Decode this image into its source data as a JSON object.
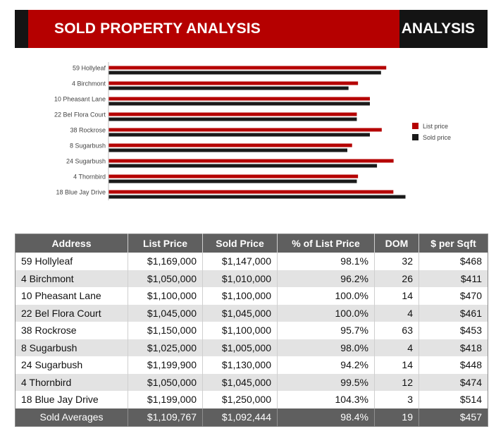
{
  "header": {
    "title": "SOLD PROPERTY ANALYSIS",
    "tag": "ANALYSIS"
  },
  "colors": {
    "list_price": "#b50000",
    "sold_price": "#1a1a1a"
  },
  "chart_data": {
    "type": "bar",
    "orientation": "horizontal",
    "categories": [
      "59 Hollyleaf",
      "4 Birchmont",
      "10 Pheasant Lane",
      "22 Bel Flora Court",
      "38 Rockrose",
      "8 Sugarbush",
      "24 Sugarbush",
      "4 Thornbird",
      "18 Blue Jay Drive"
    ],
    "series": [
      {
        "name": "List price",
        "values": [
          1169000,
          1050000,
          1100000,
          1045000,
          1150000,
          1025000,
          1199900,
          1050000,
          1199000
        ]
      },
      {
        "name": "Sold price",
        "values": [
          1147000,
          1010000,
          1100000,
          1045000,
          1100000,
          1005000,
          1130000,
          1045000,
          1250000
        ]
      }
    ],
    "title": "",
    "xlabel": "",
    "ylabel": "",
    "xlim": [
      0,
      1250000
    ],
    "grid": false,
    "axis_labels_visible": false,
    "legend_position": "right"
  },
  "table": {
    "headers": [
      "Address",
      "List Price",
      "Sold Price",
      "% of List Price",
      "DOM",
      "$ per Sqft"
    ],
    "rows": [
      [
        "59 Hollyleaf",
        "$1,169,000",
        "$1,147,000",
        "98.1%",
        "32",
        "$468"
      ],
      [
        "4 Birchmont",
        "$1,050,000",
        "$1,010,000",
        "96.2%",
        "26",
        "$411"
      ],
      [
        "10 Pheasant Lane",
        "$1,100,000",
        "$1,100,000",
        "100.0%",
        "14",
        "$470"
      ],
      [
        "22 Bel Flora Court",
        "$1,045,000",
        "$1,045,000",
        "100.0%",
        "4",
        "$461"
      ],
      [
        "38 Rockrose",
        "$1,150,000",
        "$1,100,000",
        "95.7%",
        "63",
        "$453"
      ],
      [
        "8 Sugarbush",
        "$1,025,000",
        "$1,005,000",
        "98.0%",
        "4",
        "$418"
      ],
      [
        "24 Sugarbush",
        "$1,199,900",
        "$1,130,000",
        "94.2%",
        "14",
        "$448"
      ],
      [
        "4 Thornbird",
        "$1,050,000",
        "$1,045,000",
        "99.5%",
        "12",
        "$474"
      ],
      [
        "18 Blue Jay Drive",
        "$1,199,000",
        "$1,250,000",
        "104.3%",
        "3",
        "$514"
      ]
    ],
    "footer": [
      "Sold Averages",
      "$1,109,767",
      "$1,092,444",
      "98.4%",
      "19",
      "$457"
    ]
  }
}
